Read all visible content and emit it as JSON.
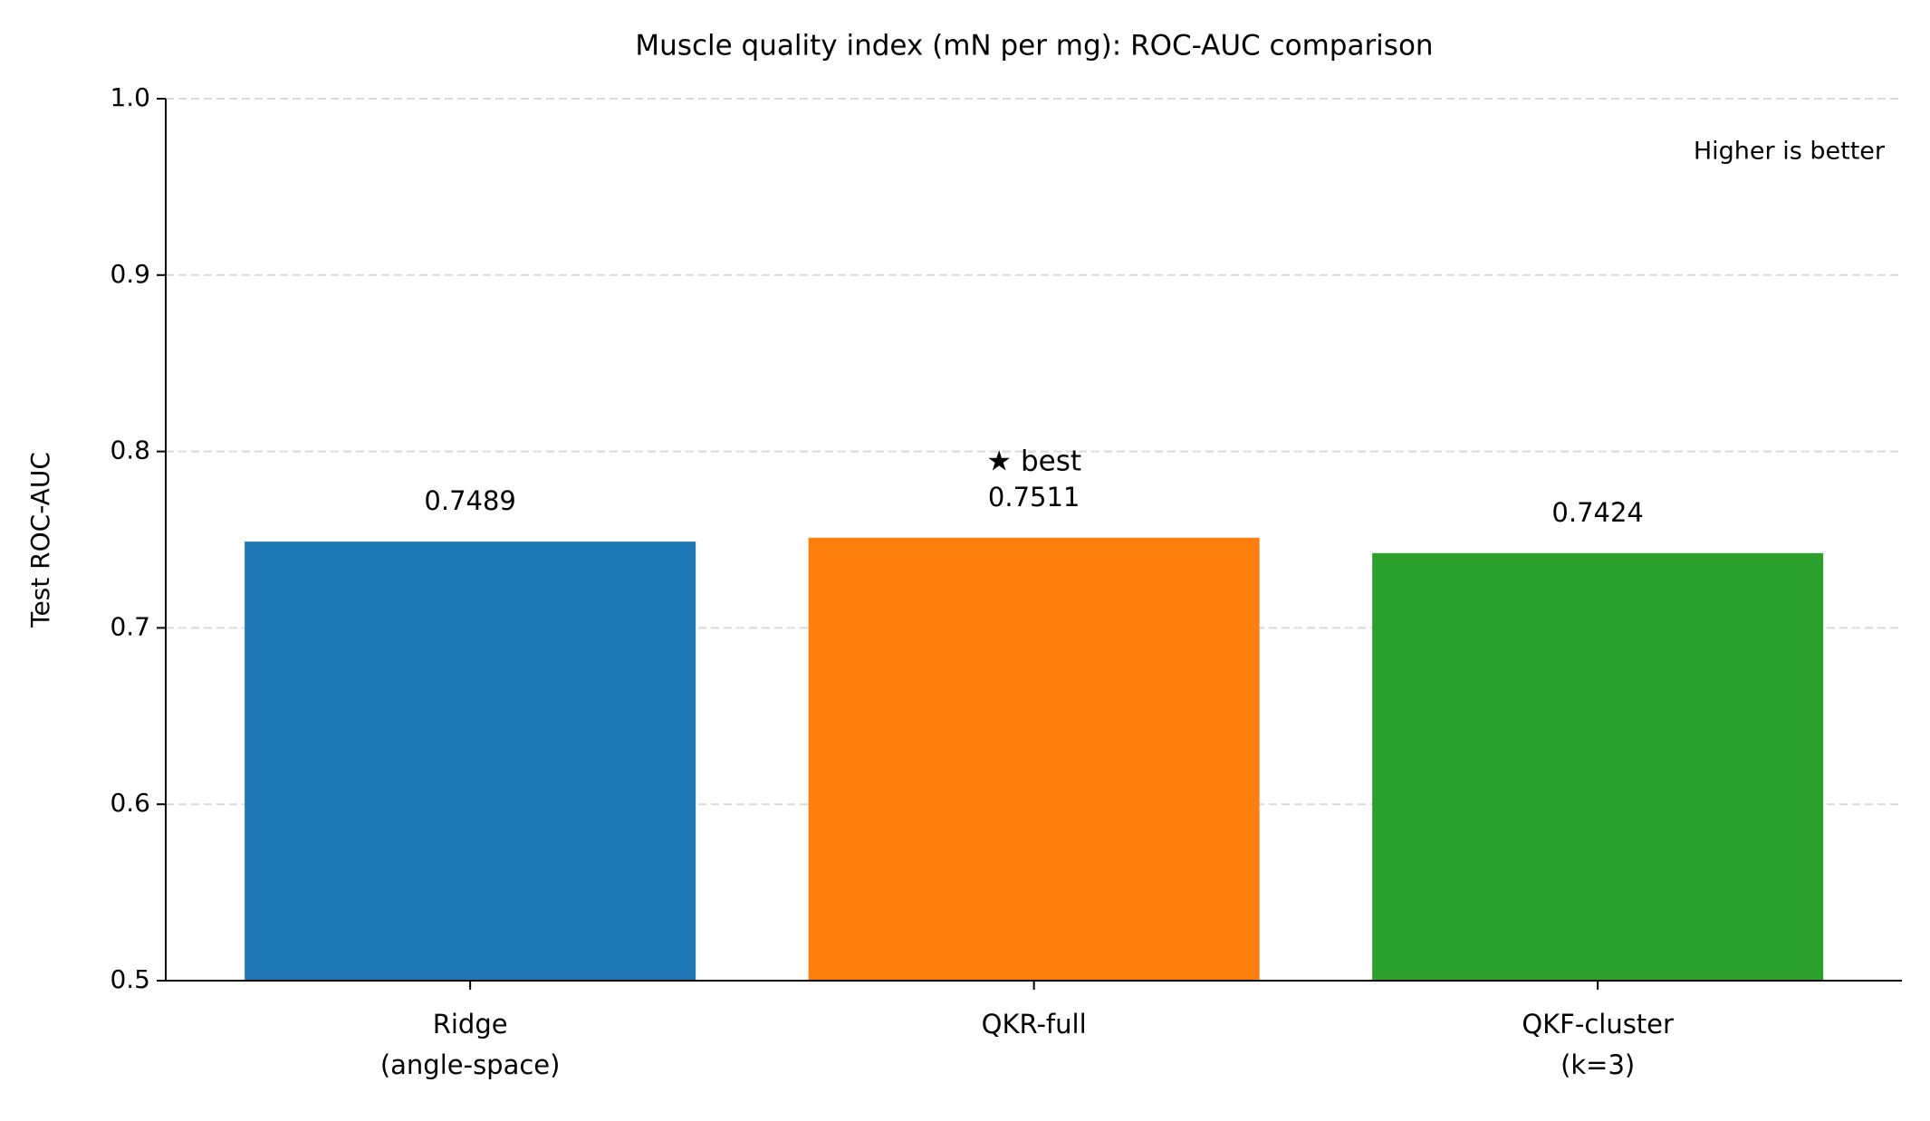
{
  "chart_data": {
    "type": "bar",
    "title": "Muscle quality index (mN per mg): ROC-AUC comparison",
    "y_label": "Test ROC-AUC",
    "categories": [
      "Ridge\n(angle-space)",
      "QKR-full",
      "QKF-cluster\n(k=3)"
    ],
    "values": [
      0.7489,
      0.7511,
      0.7424
    ],
    "colors": [
      "#1f77b4",
      "#ff7f0e",
      "#2ca02c"
    ],
    "ylim": [
      0.5,
      1.0
    ],
    "yticks": [
      0.5,
      0.6,
      0.7,
      0.8,
      0.9,
      {
        "value": 1.0,
        "label": "1.0"
      }
    ],
    "grid": true,
    "best_label": "★ best",
    "best_index": 1,
    "note": "Higher is better"
  }
}
